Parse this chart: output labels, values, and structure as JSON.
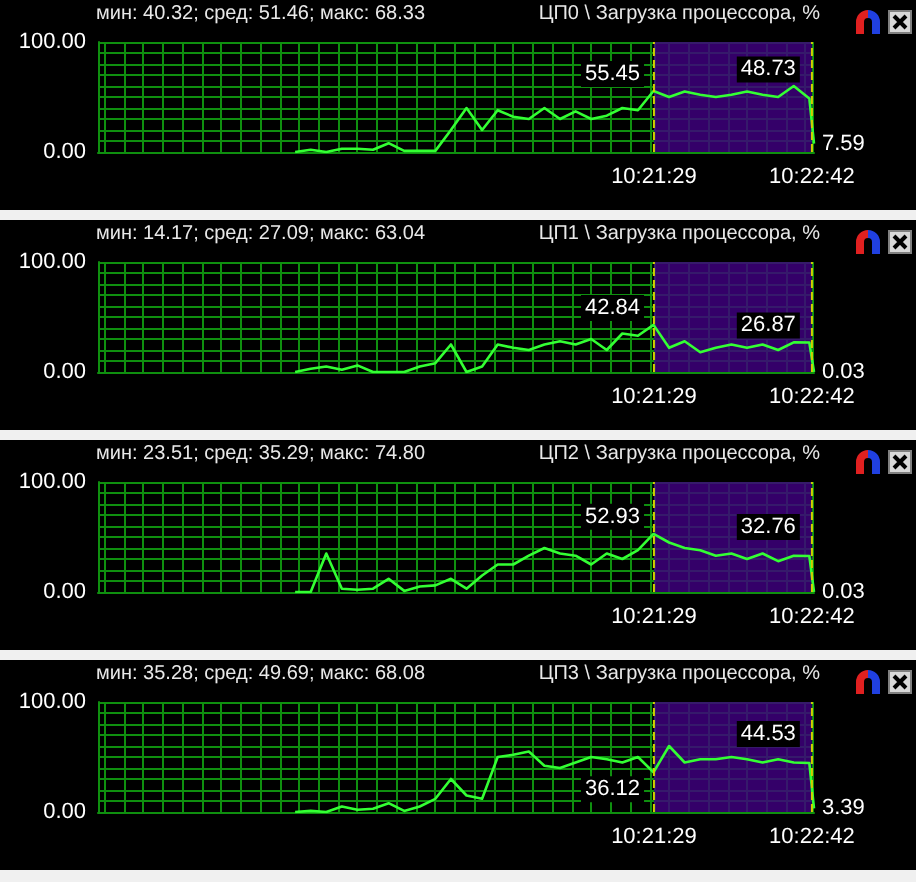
{
  "chart_data": [
    {
      "type": "line",
      "title": "ЦП0 \\ Загрузка процессора, %",
      "subtitle": "мин: 40.32; сред: 51.46; макс: 68.33",
      "x": [
        10.312,
        10.314,
        10.316,
        10.318,
        10.32,
        10.322,
        10.324,
        10.326,
        10.328,
        10.33,
        10.332,
        10.334,
        10.336,
        10.338,
        10.34,
        10.342,
        10.344,
        10.346,
        10.348,
        10.35,
        10.352,
        10.354,
        10.356,
        10.358,
        10.36,
        10.362,
        10.364,
        10.366,
        10.368,
        10.37,
        10.372,
        10.374,
        10.376,
        10.378,
        10.3786
      ],
      "series": [
        {
          "color": "#33ff33",
          "values": [
            0,
            2,
            0,
            3,
            3,
            2,
            8,
            1,
            1,
            1,
            20,
            40,
            20,
            38,
            32,
            30,
            40,
            30,
            37,
            30,
            33,
            40,
            38,
            55.45,
            50,
            55,
            52,
            50,
            52,
            55,
            52,
            50,
            60,
            48.73,
            7.59
          ]
        }
      ],
      "xlim": [
        10.2867,
        10.3786
      ],
      "ylim": [
        0,
        100
      ],
      "xticks": [
        {
          "value": 10.2875,
          "label": null
        },
        {
          "value": 10.29,
          "label": null
        },
        {
          "value": 10.2925,
          "label": null
        },
        {
          "value": 10.295,
          "label": null
        },
        {
          "value": 10.2975,
          "label": null
        },
        {
          "value": 10.3,
          "label": null
        },
        {
          "value": 10.3025,
          "label": null
        },
        {
          "value": 10.305,
          "label": null
        },
        {
          "value": 10.3075,
          "label": null
        },
        {
          "value": 10.31,
          "label": null
        },
        {
          "value": 10.3125,
          "label": null
        },
        {
          "value": 10.315,
          "label": null
        },
        {
          "value": 10.3175,
          "label": null
        },
        {
          "value": 10.32,
          "label": null
        },
        {
          "value": 10.3225,
          "label": null
        },
        {
          "value": 10.325,
          "label": null
        },
        {
          "value": 10.3275,
          "label": null
        },
        {
          "value": 10.33,
          "label": null
        },
        {
          "value": 10.3325,
          "label": null
        },
        {
          "value": 10.335,
          "label": null
        },
        {
          "value": 10.3375,
          "label": null
        },
        {
          "value": 10.34,
          "label": null
        },
        {
          "value": 10.3425,
          "label": null
        },
        {
          "value": 10.345,
          "label": null
        },
        {
          "value": 10.3475,
          "label": null
        },
        {
          "value": 10.35,
          "label": null
        },
        {
          "value": 10.3525,
          "label": null
        },
        {
          "value": 10.355,
          "label": null
        },
        {
          "value": 10.3575,
          "label": null
        },
        {
          "value": 10.358056,
          "label": "10:21:29"
        },
        {
          "value": 10.36,
          "label": null
        },
        {
          "value": 10.3625,
          "label": null
        },
        {
          "value": 10.365,
          "label": null
        },
        {
          "value": 10.3675,
          "label": null
        },
        {
          "value": 10.37,
          "label": null
        },
        {
          "value": 10.3725,
          "label": null
        },
        {
          "value": 10.375,
          "label": null
        },
        {
          "value": 10.3775,
          "label": null
        },
        {
          "value": 10.378333,
          "label": "10:22:42"
        }
      ],
      "yticks": [
        {
          "value": 0,
          "label": "0.00"
        },
        {
          "value": 10,
          "label": null
        },
        {
          "value": 20,
          "label": null
        },
        {
          "value": 30,
          "label": null
        },
        {
          "value": 40,
          "label": null
        },
        {
          "value": 50,
          "label": null
        },
        {
          "value": 60,
          "label": null
        },
        {
          "value": 70,
          "label": null
        },
        {
          "value": 80,
          "label": null
        },
        {
          "value": 90,
          "label": null
        },
        {
          "value": 100,
          "label": "100.00"
        }
      ],
      "grid": true,
      "bands": [
        {
          "axis": "x",
          "from": 10.358056,
          "to": 10.378333,
          "color": "#400080"
        }
      ],
      "ref_lines": [
        {
          "axis": "x",
          "value": 10.358056,
          "color": "#d0d000",
          "line_style": "dashed"
        },
        {
          "axis": "x",
          "value": 10.378333,
          "color": "#d0d000",
          "line_style": "dashed"
        }
      ],
      "annotations": [
        {
          "text": "55.45",
          "x": 10.358,
          "y": 55.45
        },
        {
          "text": "48.73",
          "x": 10.378,
          "y": 48.73
        },
        {
          "text": "7.59",
          "x": 10.3786,
          "y": 7.59
        }
      ]
    },
    {
      "type": "line",
      "title": "ЦП1 \\ Загрузка процессора, %",
      "subtitle": "мин: 14.17; сред: 27.09; макс: 63.04",
      "x": [
        10.312,
        10.314,
        10.316,
        10.318,
        10.32,
        10.322,
        10.324,
        10.326,
        10.328,
        10.33,
        10.332,
        10.334,
        10.336,
        10.338,
        10.34,
        10.342,
        10.344,
        10.346,
        10.348,
        10.35,
        10.352,
        10.354,
        10.356,
        10.358,
        10.36,
        10.362,
        10.364,
        10.366,
        10.368,
        10.37,
        10.372,
        10.374,
        10.376,
        10.378,
        10.3786
      ],
      "series": [
        {
          "color": "#33ff33",
          "values": [
            0,
            3,
            5,
            2,
            6,
            0,
            0,
            0,
            5,
            8,
            25,
            0,
            5,
            25,
            22,
            20,
            25,
            28,
            25,
            30,
            20,
            35,
            33,
            42.84,
            22,
            28,
            18,
            22,
            25,
            22,
            25,
            20,
            27,
            26.87,
            0.03
          ]
        }
      ],
      "xlim": [
        10.2867,
        10.3786
      ],
      "ylim": [
        0,
        100
      ],
      "xticks": [
        {
          "value": 10.2875,
          "label": null
        },
        {
          "value": 10.29,
          "label": null
        },
        {
          "value": 10.2925,
          "label": null
        },
        {
          "value": 10.295,
          "label": null
        },
        {
          "value": 10.2975,
          "label": null
        },
        {
          "value": 10.3,
          "label": null
        },
        {
          "value": 10.3025,
          "label": null
        },
        {
          "value": 10.305,
          "label": null
        },
        {
          "value": 10.3075,
          "label": null
        },
        {
          "value": 10.31,
          "label": null
        },
        {
          "value": 10.3125,
          "label": null
        },
        {
          "value": 10.315,
          "label": null
        },
        {
          "value": 10.3175,
          "label": null
        },
        {
          "value": 10.32,
          "label": null
        },
        {
          "value": 10.3225,
          "label": null
        },
        {
          "value": 10.325,
          "label": null
        },
        {
          "value": 10.3275,
          "label": null
        },
        {
          "value": 10.33,
          "label": null
        },
        {
          "value": 10.3325,
          "label": null
        },
        {
          "value": 10.335,
          "label": null
        },
        {
          "value": 10.3375,
          "label": null
        },
        {
          "value": 10.34,
          "label": null
        },
        {
          "value": 10.3425,
          "label": null
        },
        {
          "value": 10.345,
          "label": null
        },
        {
          "value": 10.3475,
          "label": null
        },
        {
          "value": 10.35,
          "label": null
        },
        {
          "value": 10.3525,
          "label": null
        },
        {
          "value": 10.355,
          "label": null
        },
        {
          "value": 10.3575,
          "label": null
        },
        {
          "value": 10.358056,
          "label": "10:21:29"
        },
        {
          "value": 10.36,
          "label": null
        },
        {
          "value": 10.3625,
          "label": null
        },
        {
          "value": 10.365,
          "label": null
        },
        {
          "value": 10.3675,
          "label": null
        },
        {
          "value": 10.37,
          "label": null
        },
        {
          "value": 10.3725,
          "label": null
        },
        {
          "value": 10.375,
          "label": null
        },
        {
          "value": 10.3775,
          "label": null
        },
        {
          "value": 10.378333,
          "label": "10:22:42"
        }
      ],
      "yticks": [
        {
          "value": 0,
          "label": "0.00"
        },
        {
          "value": 10,
          "label": null
        },
        {
          "value": 20,
          "label": null
        },
        {
          "value": 30,
          "label": null
        },
        {
          "value": 40,
          "label": null
        },
        {
          "value": 50,
          "label": null
        },
        {
          "value": 60,
          "label": null
        },
        {
          "value": 70,
          "label": null
        },
        {
          "value": 80,
          "label": null
        },
        {
          "value": 90,
          "label": null
        },
        {
          "value": 100,
          "label": "100.00"
        }
      ],
      "grid": true,
      "bands": [
        {
          "axis": "x",
          "from": 10.358056,
          "to": 10.378333,
          "color": "#400080"
        }
      ],
      "ref_lines": [
        {
          "axis": "x",
          "value": 10.358056,
          "color": "#d0d000",
          "line_style": "dashed"
        },
        {
          "axis": "x",
          "value": 10.378333,
          "color": "#d0d000",
          "line_style": "dashed"
        }
      ],
      "annotations": [
        {
          "text": "42.84",
          "x": 10.358,
          "y": 42.84
        },
        {
          "text": "26.87",
          "x": 10.378,
          "y": 26.87
        },
        {
          "text": "0.03",
          "x": 10.3786,
          "y": 0.03
        }
      ]
    },
    {
      "type": "line",
      "title": "ЦП2 \\ Загрузка процессора, %",
      "subtitle": "мин: 23.51; сред: 35.29; макс: 74.80",
      "x": [
        10.312,
        10.314,
        10.316,
        10.318,
        10.32,
        10.322,
        10.324,
        10.326,
        10.328,
        10.33,
        10.332,
        10.334,
        10.336,
        10.338,
        10.34,
        10.342,
        10.344,
        10.346,
        10.348,
        10.35,
        10.352,
        10.354,
        10.356,
        10.358,
        10.36,
        10.362,
        10.364,
        10.366,
        10.368,
        10.37,
        10.372,
        10.374,
        10.376,
        10.378,
        10.3786
      ],
      "series": [
        {
          "color": "#33ff33",
          "values": [
            0,
            0,
            35,
            3,
            2,
            3,
            12,
            1,
            5,
            6,
            12,
            3,
            15,
            25,
            25,
            33,
            40,
            35,
            33,
            25,
            35,
            30,
            38,
            52.93,
            45,
            40,
            38,
            33,
            35,
            30,
            35,
            28,
            33,
            32.76,
            0.03
          ]
        }
      ],
      "xlim": [
        10.2867,
        10.3786
      ],
      "ylim": [
        0,
        100
      ],
      "xticks": [
        {
          "value": 10.2875,
          "label": null
        },
        {
          "value": 10.29,
          "label": null
        },
        {
          "value": 10.2925,
          "label": null
        },
        {
          "value": 10.295,
          "label": null
        },
        {
          "value": 10.2975,
          "label": null
        },
        {
          "value": 10.3,
          "label": null
        },
        {
          "value": 10.3025,
          "label": null
        },
        {
          "value": 10.305,
          "label": null
        },
        {
          "value": 10.3075,
          "label": null
        },
        {
          "value": 10.31,
          "label": null
        },
        {
          "value": 10.3125,
          "label": null
        },
        {
          "value": 10.315,
          "label": null
        },
        {
          "value": 10.3175,
          "label": null
        },
        {
          "value": 10.32,
          "label": null
        },
        {
          "value": 10.3225,
          "label": null
        },
        {
          "value": 10.325,
          "label": null
        },
        {
          "value": 10.3275,
          "label": null
        },
        {
          "value": 10.33,
          "label": null
        },
        {
          "value": 10.3325,
          "label": null
        },
        {
          "value": 10.335,
          "label": null
        },
        {
          "value": 10.3375,
          "label": null
        },
        {
          "value": 10.34,
          "label": null
        },
        {
          "value": 10.3425,
          "label": null
        },
        {
          "value": 10.345,
          "label": null
        },
        {
          "value": 10.3475,
          "label": null
        },
        {
          "value": 10.35,
          "label": null
        },
        {
          "value": 10.3525,
          "label": null
        },
        {
          "value": 10.355,
          "label": null
        },
        {
          "value": 10.3575,
          "label": null
        },
        {
          "value": 10.358056,
          "label": "10:21:29"
        },
        {
          "value": 10.36,
          "label": null
        },
        {
          "value": 10.3625,
          "label": null
        },
        {
          "value": 10.365,
          "label": null
        },
        {
          "value": 10.3675,
          "label": null
        },
        {
          "value": 10.37,
          "label": null
        },
        {
          "value": 10.3725,
          "label": null
        },
        {
          "value": 10.375,
          "label": null
        },
        {
          "value": 10.3775,
          "label": null
        },
        {
          "value": 10.378333,
          "label": "10:22:42"
        }
      ],
      "yticks": [
        {
          "value": 0,
          "label": "0.00"
        },
        {
          "value": 10,
          "label": null
        },
        {
          "value": 20,
          "label": null
        },
        {
          "value": 30,
          "label": null
        },
        {
          "value": 40,
          "label": null
        },
        {
          "value": 50,
          "label": null
        },
        {
          "value": 60,
          "label": null
        },
        {
          "value": 70,
          "label": null
        },
        {
          "value": 80,
          "label": null
        },
        {
          "value": 90,
          "label": null
        },
        {
          "value": 100,
          "label": "100.00"
        }
      ],
      "grid": true,
      "bands": [
        {
          "axis": "x",
          "from": 10.358056,
          "to": 10.378333,
          "color": "#400080"
        }
      ],
      "ref_lines": [
        {
          "axis": "x",
          "value": 10.358056,
          "color": "#d0d000",
          "line_style": "dashed"
        },
        {
          "axis": "x",
          "value": 10.378333,
          "color": "#d0d000",
          "line_style": "dashed"
        }
      ],
      "annotations": [
        {
          "text": "52.93",
          "x": 10.358,
          "y": 52.93
        },
        {
          "text": "32.76",
          "x": 10.378,
          "y": 32.76
        },
        {
          "text": "0.03",
          "x": 10.3786,
          "y": 0.03
        }
      ]
    },
    {
      "type": "line",
      "title": "ЦП3 \\ Загрузка процессора, %",
      "subtitle": "мин: 35.28; сред: 49.69; макс: 68.08",
      "x": [
        10.312,
        10.314,
        10.316,
        10.318,
        10.32,
        10.322,
        10.324,
        10.326,
        10.328,
        10.33,
        10.332,
        10.334,
        10.336,
        10.338,
        10.34,
        10.342,
        10.344,
        10.346,
        10.348,
        10.35,
        10.352,
        10.354,
        10.356,
        10.358,
        10.36,
        10.362,
        10.364,
        10.366,
        10.368,
        10.37,
        10.372,
        10.374,
        10.376,
        10.378,
        10.3786
      ],
      "series": [
        {
          "color": "#33ff33",
          "values": [
            0,
            1,
            0,
            5,
            2,
            3,
            8,
            1,
            5,
            12,
            30,
            15,
            12,
            50,
            52,
            55,
            42,
            40,
            45,
            50,
            48,
            45,
            50,
            36.12,
            60,
            45,
            48,
            48,
            50,
            48,
            45,
            48,
            45,
            44.53,
            3.39
          ]
        }
      ],
      "xlim": [
        10.2867,
        10.3786
      ],
      "ylim": [
        0,
        100
      ],
      "xticks": [
        {
          "value": 10.2875,
          "label": null
        },
        {
          "value": 10.29,
          "label": null
        },
        {
          "value": 10.2925,
          "label": null
        },
        {
          "value": 10.295,
          "label": null
        },
        {
          "value": 10.2975,
          "label": null
        },
        {
          "value": 10.3,
          "label": null
        },
        {
          "value": 10.3025,
          "label": null
        },
        {
          "value": 10.305,
          "label": null
        },
        {
          "value": 10.3075,
          "label": null
        },
        {
          "value": 10.31,
          "label": null
        },
        {
          "value": 10.3125,
          "label": null
        },
        {
          "value": 10.315,
          "label": null
        },
        {
          "value": 10.3175,
          "label": null
        },
        {
          "value": 10.32,
          "label": null
        },
        {
          "value": 10.3225,
          "label": null
        },
        {
          "value": 10.325,
          "label": null
        },
        {
          "value": 10.3275,
          "label": null
        },
        {
          "value": 10.33,
          "label": null
        },
        {
          "value": 10.3325,
          "label": null
        },
        {
          "value": 10.335,
          "label": null
        },
        {
          "value": 10.3375,
          "label": null
        },
        {
          "value": 10.34,
          "label": null
        },
        {
          "value": 10.3425,
          "label": null
        },
        {
          "value": 10.345,
          "label": null
        },
        {
          "value": 10.3475,
          "label": null
        },
        {
          "value": 10.35,
          "label": null
        },
        {
          "value": 10.3525,
          "label": null
        },
        {
          "value": 10.355,
          "label": null
        },
        {
          "value": 10.3575,
          "label": null
        },
        {
          "value": 10.358056,
          "label": "10:21:29"
        },
        {
          "value": 10.36,
          "label": null
        },
        {
          "value": 10.3625,
          "label": null
        },
        {
          "value": 10.365,
          "label": null
        },
        {
          "value": 10.3675,
          "label": null
        },
        {
          "value": 10.37,
          "label": null
        },
        {
          "value": 10.3725,
          "label": null
        },
        {
          "value": 10.375,
          "label": null
        },
        {
          "value": 10.3775,
          "label": null
        },
        {
          "value": 10.378333,
          "label": "10:22:42"
        }
      ],
      "yticks": [
        {
          "value": 0,
          "label": "0.00"
        },
        {
          "value": 10,
          "label": null
        },
        {
          "value": 20,
          "label": null
        },
        {
          "value": 30,
          "label": null
        },
        {
          "value": 40,
          "label": null
        },
        {
          "value": 50,
          "label": null
        },
        {
          "value": 60,
          "label": null
        },
        {
          "value": 70,
          "label": null
        },
        {
          "value": 80,
          "label": null
        },
        {
          "value": 90,
          "label": null
        },
        {
          "value": 100,
          "label": "100.00"
        }
      ],
      "grid": true,
      "bands": [
        {
          "axis": "x",
          "from": 10.358056,
          "to": 10.378333,
          "color": "#400080"
        }
      ],
      "ref_lines": [
        {
          "axis": "x",
          "value": 10.358056,
          "color": "#d0d000",
          "line_style": "dashed"
        },
        {
          "axis": "x",
          "value": 10.378333,
          "color": "#d0d000",
          "line_style": "dashed"
        }
      ],
      "annotations": [
        {
          "text": "36.12",
          "x": 10.358,
          "y": 36.12
        },
        {
          "text": "44.53",
          "x": 10.378,
          "y": 44.53
        },
        {
          "text": "3.39",
          "x": 10.3786,
          "y": 3.39
        }
      ]
    }
  ]
}
